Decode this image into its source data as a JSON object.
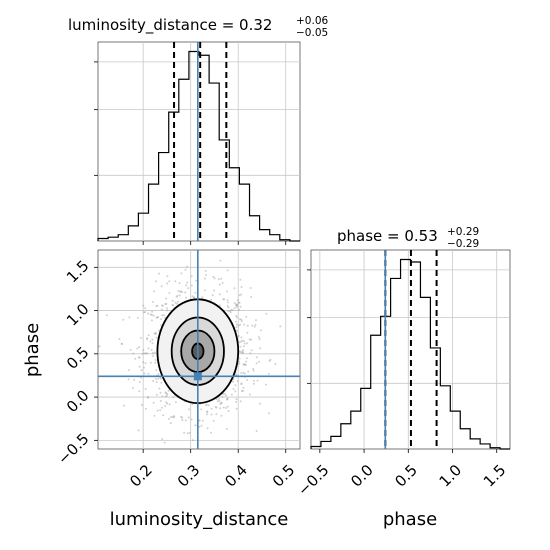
{
  "chart_data": {
    "type": "corner",
    "parameters": [
      "luminosity_distance",
      "phase"
    ],
    "colors": {
      "truth": "#4682b4",
      "hist": "#000000",
      "grid": "#b0b0b0",
      "points": "#9a9a9a"
    },
    "grid": true,
    "panels": [
      {
        "kind": "histogram",
        "parameter": "luminosity_distance",
        "title_main": "luminosity_distance = 0.32",
        "title_sup": "+0.06",
        "title_sub": "−0.05",
        "xlim": [
          0.105,
          0.53
        ],
        "bin_edges": [
          0.105,
          0.1263,
          0.1475,
          0.1688,
          0.19,
          0.2113,
          0.2325,
          0.2538,
          0.275,
          0.2963,
          0.3175,
          0.3388,
          0.36,
          0.3813,
          0.4025,
          0.4238,
          0.445,
          0.4663,
          0.4875,
          0.5088,
          0.53
        ],
        "counts": [
          2,
          3,
          5,
          12,
          22,
          45,
          70,
          102,
          128,
          150,
          147,
          125,
          80,
          58,
          45,
          20,
          9,
          5,
          1,
          0
        ],
        "median": 0.32,
        "quantiles": [
          0.265,
          0.32,
          0.375
        ],
        "truth": 0.315
      },
      {
        "kind": "histogram",
        "parameter": "phase",
        "title_main": "phase = 0.53",
        "title_sup": "+0.29",
        "title_sub": "−0.29",
        "xlim": [
          -0.6,
          1.65
        ],
        "bin_edges": [
          -0.6,
          -0.4875,
          -0.375,
          -0.2625,
          -0.15,
          -0.0375,
          0.075,
          0.1875,
          0.3,
          0.4125,
          0.525,
          0.6375,
          0.75,
          0.8625,
          0.975,
          1.0875,
          1.2,
          1.3125,
          1.425,
          1.5375,
          1.65
        ],
        "counts": [
          2,
          6,
          10,
          20,
          30,
          48,
          90,
          105,
          135,
          150,
          148,
          120,
          80,
          50,
          30,
          16,
          8,
          4,
          1,
          0
        ],
        "quantiles": [
          0.24,
          0.53,
          0.82
        ],
        "truth": 0.24,
        "xticks": [
          "−0.5",
          "0.0",
          "0.5",
          "1.0",
          "1.5"
        ],
        "xtick_values": [
          -0.5,
          0.0,
          0.5,
          1.0,
          1.5
        ],
        "xlabel": "phase"
      },
      {
        "kind": "2d",
        "x_parameter": "luminosity_distance",
        "y_parameter": "phase",
        "xlim": [
          0.105,
          0.53
        ],
        "ylim": [
          -0.6,
          1.7
        ],
        "center": [
          0.315,
          0.53
        ],
        "contours": [
          {
            "rx": 0.012,
            "ry": 0.09
          },
          {
            "rx": 0.035,
            "ry": 0.24
          },
          {
            "rx": 0.055,
            "ry": 0.39
          },
          {
            "rx": 0.085,
            "ry": 0.6
          }
        ],
        "truth": [
          0.315,
          0.24
        ],
        "xticks": [
          "0.2",
          "0.3",
          "0.4",
          "0.5"
        ],
        "xtick_values": [
          0.2,
          0.3,
          0.4,
          0.5
        ],
        "yticks": [
          "−0.5",
          "0.0",
          "0.5",
          "1.0",
          "1.5"
        ],
        "ytick_values": [
          -0.5,
          0.0,
          0.5,
          1.0,
          1.5
        ],
        "xlabel": "luminosity_distance",
        "ylabel": "phase"
      }
    ]
  }
}
